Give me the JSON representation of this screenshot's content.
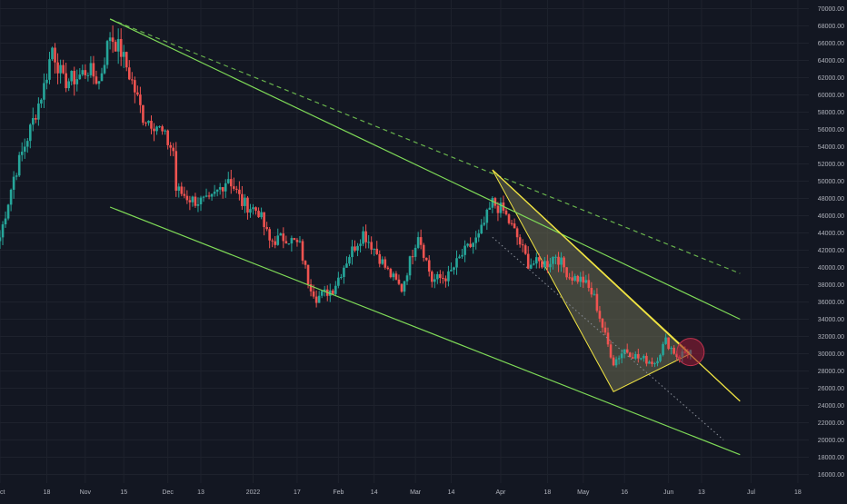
{
  "colors": {
    "background": "#131722",
    "grid": "#1e222d",
    "up": "#26a69a",
    "down": "#ef5350",
    "channel": "#7ed957",
    "triangle_line": "#f0e442",
    "triangle_fill": "#6b6b52",
    "circle": "#9c1b36",
    "axis_text": "#b2b5be"
  },
  "chart_data": {
    "type": "candlestick",
    "title": "",
    "xlabel": "",
    "ylabel": "",
    "y_ticks": [
      "16000.00",
      "18000.00",
      "20000.00",
      "22000.00",
      "24000.00",
      "26000.00",
      "28000.00",
      "30000.00",
      "32000.00",
      "34000.00",
      "36000.00",
      "38000.00",
      "40000.00",
      "42000.00",
      "44000.00",
      "46000.00",
      "48000.00",
      "50000.00",
      "52000.00",
      "54000.00",
      "56000.00",
      "58000.00",
      "60000.00",
      "62000.00",
      "64000.00",
      "66000.00",
      "68000.00",
      "70000.00"
    ],
    "y_tick_values": [
      16000,
      18000,
      20000,
      22000,
      24000,
      26000,
      28000,
      30000,
      32000,
      34000,
      36000,
      38000,
      40000,
      42000,
      44000,
      46000,
      48000,
      50000,
      52000,
      54000,
      56000,
      58000,
      60000,
      62000,
      64000,
      66000,
      68000,
      70000
    ],
    "ylim": [
      15000,
      71000
    ],
    "xlim": [
      "2021-10-01",
      "2022-07-22"
    ],
    "x_ticks": [
      {
        "label": "Oct",
        "date": "2021-10-01"
      },
      {
        "label": "18",
        "date": "2021-10-18"
      },
      {
        "label": "Nov",
        "date": "2021-11-01"
      },
      {
        "label": "15",
        "date": "2021-11-15"
      },
      {
        "label": "Dec",
        "date": "2021-12-01"
      },
      {
        "label": "13",
        "date": "2021-12-13"
      },
      {
        "label": "2022",
        "date": "2022-01-01"
      },
      {
        "label": "17",
        "date": "2022-01-17"
      },
      {
        "label": "Feb",
        "date": "2022-02-01"
      },
      {
        "label": "14",
        "date": "2022-02-14"
      },
      {
        "label": "Mar",
        "date": "2022-03-01"
      },
      {
        "label": "14",
        "date": "2022-03-14"
      },
      {
        "label": "Apr",
        "date": "2022-04-01"
      },
      {
        "label": "18",
        "date": "2022-04-18"
      },
      {
        "label": "May",
        "date": "2022-05-01"
      },
      {
        "label": "16",
        "date": "2022-05-16"
      },
      {
        "label": "Jun",
        "date": "2022-06-01"
      },
      {
        "label": "13",
        "date": "2022-06-13"
      },
      {
        "label": "Jul",
        "date": "2022-07-01"
      },
      {
        "label": "18",
        "date": "2022-07-18"
      }
    ],
    "price_anchors": [
      [
        "2021-10-01",
        43500
      ],
      [
        "2021-10-06",
        50500
      ],
      [
        "2021-10-12",
        56000
      ],
      [
        "2021-10-17",
        61000
      ],
      [
        "2021-10-20",
        65500
      ],
      [
        "2021-10-24",
        61500
      ],
      [
        "2021-10-29",
        62000
      ],
      [
        "2021-11-02",
        63000
      ],
      [
        "2021-11-06",
        61500
      ],
      [
        "2021-11-10",
        67000
      ],
      [
        "2021-11-14",
        65000
      ],
      [
        "2021-11-18",
        61500
      ],
      [
        "2021-11-22",
        57500
      ],
      [
        "2021-11-27",
        56500
      ],
      [
        "2021-12-03",
        53500
      ],
      [
        "2021-12-04",
        49000
      ],
      [
        "2021-12-10",
        47800
      ],
      [
        "2021-12-16",
        47500
      ],
      [
        "2021-12-23",
        50500
      ],
      [
        "2021-12-28",
        47500
      ],
      [
        "2022-01-03",
        46500
      ],
      [
        "2022-01-07",
        43000
      ],
      [
        "2022-01-13",
        43500
      ],
      [
        "2022-01-18",
        42500
      ],
      [
        "2022-01-21",
        38500
      ],
      [
        "2022-01-24",
        36500
      ],
      [
        "2022-01-30",
        37500
      ],
      [
        "2022-02-05",
        41500
      ],
      [
        "2022-02-10",
        44000
      ],
      [
        "2022-02-14",
        42200
      ],
      [
        "2022-02-19",
        39500
      ],
      [
        "2022-02-24",
        37500
      ],
      [
        "2022-03-02",
        44000
      ],
      [
        "2022-03-07",
        38500
      ],
      [
        "2022-03-13",
        39000
      ],
      [
        "2022-03-18",
        41500
      ],
      [
        "2022-03-24",
        43500
      ],
      [
        "2022-03-29",
        47500
      ],
      [
        "2022-04-02",
        46500
      ],
      [
        "2022-04-07",
        43500
      ],
      [
        "2022-04-11",
        40500
      ],
      [
        "2022-04-18",
        40500
      ],
      [
        "2022-04-21",
        41500
      ],
      [
        "2022-04-26",
        39000
      ],
      [
        "2022-05-01",
        38500
      ],
      [
        "2022-05-05",
        36500
      ],
      [
        "2022-05-09",
        32000
      ],
      [
        "2022-05-12",
        29000
      ],
      [
        "2022-05-16",
        30500
      ],
      [
        "2022-05-21",
        29500
      ],
      [
        "2022-05-27",
        29000
      ],
      [
        "2022-05-31",
        31500
      ],
      [
        "2022-06-04",
        29800
      ],
      [
        "2022-06-09",
        30300
      ]
    ],
    "drawings": {
      "channel_upper": [
        [
          "2021-11-10",
          68800
        ],
        [
          "2022-06-27",
          34000
        ]
      ],
      "channel_lower": [
        [
          "2021-11-10",
          47000
        ],
        [
          "2022-06-27",
          18300
        ]
      ],
      "channel_mid_dashed": [
        [
          "2021-11-10",
          68800
        ],
        [
          "2022-06-27",
          39300
        ]
      ],
      "triangle": [
        [
          "2022-03-29",
          51300
        ],
        [
          "2022-05-12",
          25600
        ],
        [
          "2022-06-09",
          30000
        ]
      ],
      "triangle_extension": [
        [
          "2022-03-29",
          51300
        ],
        [
          "2022-06-27",
          24500
        ]
      ],
      "dotted_projection": [
        [
          "2022-03-29",
          43500
        ],
        [
          "2022-06-21",
          20000
        ]
      ],
      "highlight_circle": {
        "date": "2022-06-09",
        "price": 30200
      }
    }
  }
}
